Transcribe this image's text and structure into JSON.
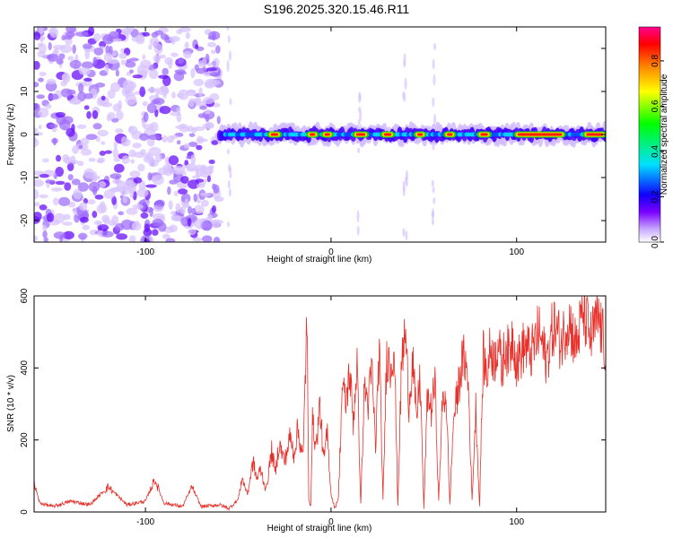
{
  "title": "S196.2025.320.15.46.R11",
  "chart_data": [
    {
      "type": "heatmap",
      "xlabel": "Height of straight line (km)",
      "ylabel": "Frequency (Hz)",
      "xlim": [
        -160,
        148
      ],
      "ylim": [
        -25,
        25
      ],
      "xticks": [
        -100,
        0,
        100
      ],
      "yticks": [
        -20,
        -10,
        0,
        10,
        20
      ],
      "colorbar": {
        "label": "Normalized spectral amplitude",
        "range": [
          0,
          0.95
        ],
        "ticks": [
          "0.0",
          "0.2",
          "0.4",
          "0.6",
          "0.8"
        ],
        "colormap": [
          "#ffffff",
          "#b080ff",
          "#7000ff",
          "#0000ff",
          "#00ffff",
          "#00ff00",
          "#ffff00",
          "#ff8000",
          "#ff0000",
          "#ff00a0"
        ]
      },
      "description_of_bands": {
        "noise_region_x_range": [
          -160,
          -60
        ],
        "signal_band_x_range": [
          -60,
          148
        ],
        "signal_frequency_hz": 0,
        "peak_segments_x": [
          [
            -33,
            -28
          ],
          [
            -12,
            -8
          ],
          [
            -4,
            0
          ],
          [
            13,
            19
          ],
          [
            28,
            33
          ],
          [
            46,
            50
          ],
          [
            62,
            66
          ],
          [
            80,
            85
          ],
          [
            100,
            125
          ],
          [
            137,
            147
          ]
        ]
      }
    },
    {
      "type": "line",
      "xlabel": "Height of straight line (km)",
      "ylabel": "SNR (10 * v/v)",
      "xlim": [
        -160,
        148
      ],
      "ylim": [
        0,
        600
      ],
      "xticks": [
        -100,
        0,
        100
      ],
      "yticks": [
        0,
        200,
        400,
        600
      ],
      "series": [
        {
          "name": "SNR",
          "color": "#e8302a",
          "x": [
            -160,
            -157,
            -150,
            -140,
            -130,
            -120,
            -110,
            -100,
            -95,
            -90,
            -80,
            -75,
            -70,
            -60,
            -55,
            -50,
            -48,
            -45,
            -42,
            -40,
            -38,
            -35,
            -32,
            -30,
            -28,
            -25,
            -22,
            -20,
            -18,
            -15,
            -13,
            -12,
            -11,
            -10,
            -8,
            -6,
            -4,
            -2,
            0,
            2,
            4,
            6,
            8,
            10,
            12,
            14,
            16,
            18,
            20,
            22,
            24,
            26,
            28,
            30,
            32,
            34,
            36,
            38,
            40,
            42,
            44,
            46,
            48,
            50,
            52,
            54,
            56,
            58,
            60,
            62,
            64,
            66,
            68,
            70,
            72,
            74,
            76,
            78,
            80,
            82,
            84,
            86,
            88,
            90,
            92,
            94,
            96,
            98,
            100,
            104,
            108,
            112,
            116,
            120,
            124,
            128,
            132,
            136,
            140,
            144,
            148
          ],
          "y": [
            80,
            25,
            15,
            30,
            20,
            70,
            20,
            30,
            90,
            25,
            15,
            70,
            15,
            20,
            10,
            35,
            95,
            50,
            140,
            90,
            120,
            60,
            170,
            110,
            190,
            140,
            210,
            160,
            230,
            150,
            560,
            30,
            20,
            250,
            180,
            300,
            140,
            220,
            50,
            10,
            40,
            350,
            300,
            390,
            250,
            420,
            20,
            350,
            300,
            400,
            180,
            460,
            30,
            440,
            400,
            470,
            20,
            410,
            500,
            300,
            430,
            250,
            380,
            10,
            330,
            280,
            360,
            30,
            300,
            330,
            20,
            260,
            320,
            400,
            430,
            350,
            30,
            290,
            15,
            430,
            380,
            460,
            420,
            480,
            390,
            470,
            430,
            500,
            410,
            460,
            440,
            500,
            420,
            520,
            470,
            540,
            460,
            560,
            480,
            540,
            450
          ]
        }
      ]
    }
  ]
}
